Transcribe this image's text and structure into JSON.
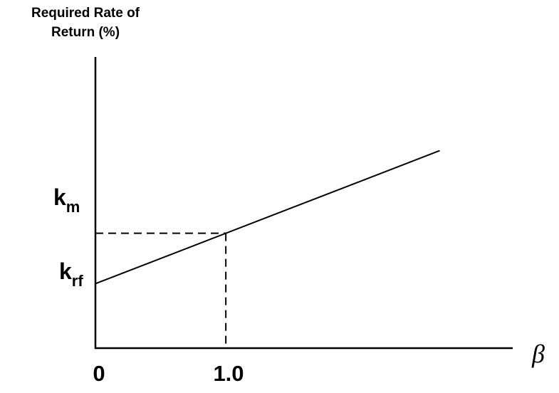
{
  "chart_data": {
    "type": "line",
    "title": "",
    "ylabel": [
      "Required Rate of",
      "Return (%)"
    ],
    "xlabel": "β",
    "x_ticks": [
      "0",
      "1.0"
    ],
    "y_markers": [
      {
        "base": "k",
        "sub": "m",
        "y": 1.0
      },
      {
        "base": "k",
        "sub": "rf",
        "y": 0
      }
    ],
    "series": [
      {
        "x": [
          0,
          2.64
        ],
        "y": [
          0,
          2.64
        ]
      }
    ],
    "reference_point": {
      "x": 1.0,
      "y": 1.0
    },
    "xlim": [
      0,
      3.2
    ],
    "ylim": [
      -1.28,
      4.5
    ],
    "grid": false,
    "line_color": "#000000"
  }
}
